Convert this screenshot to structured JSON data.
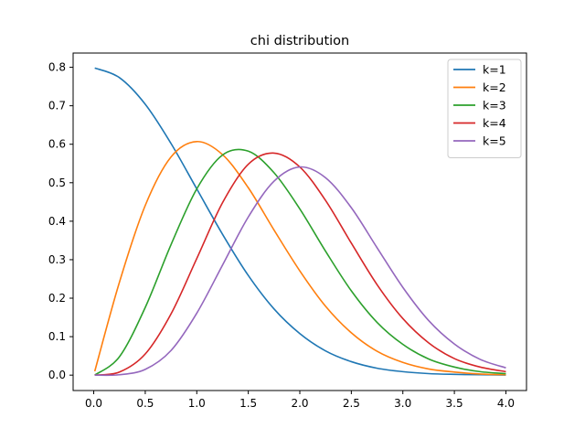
{
  "chart_data": {
    "type": "line",
    "title": "chi distribution",
    "xlabel": "",
    "ylabel": "",
    "xlim": [
      -0.2,
      4.2
    ],
    "ylim": [
      -0.04,
      0.837
    ],
    "x_ticks": [
      0.0,
      0.5,
      1.0,
      1.5,
      2.0,
      2.5,
      3.0,
      3.5,
      4.0
    ],
    "x_tick_labels": [
      "0.0",
      "0.5",
      "1.0",
      "1.5",
      "2.0",
      "2.5",
      "3.0",
      "3.5",
      "4.0"
    ],
    "y_ticks": [
      0.0,
      0.1,
      0.2,
      0.3,
      0.4,
      0.5,
      0.6,
      0.7,
      0.8
    ],
    "y_tick_labels": [
      "0.0",
      "0.1",
      "0.2",
      "0.3",
      "0.4",
      "0.5",
      "0.6",
      "0.7",
      "0.8"
    ],
    "grid": false,
    "legend_position": "top-right",
    "x": [
      0.01,
      0.25,
      0.5,
      0.75,
      1.0,
      1.25,
      1.5,
      1.75,
      2.0,
      2.25,
      2.5,
      2.75,
      3.0,
      3.25,
      3.5,
      3.75,
      4.0
    ],
    "series": [
      {
        "name": "k=1",
        "color": "#1f77b4",
        "values": [
          0.798,
          0.773,
          0.704,
          0.602,
          0.484,
          0.366,
          0.259,
          0.172,
          0.108,
          0.063,
          0.035,
          0.018,
          0.009,
          0.004,
          0.002,
          0.001,
          0.0003
        ]
      },
      {
        "name": "k=2",
        "color": "#ff7f0e",
        "values": [
          0.01,
          0.242,
          0.441,
          0.567,
          0.607,
          0.573,
          0.487,
          0.377,
          0.271,
          0.179,
          0.11,
          0.062,
          0.033,
          0.016,
          0.008,
          0.003,
          0.001
        ]
      },
      {
        "name": "k=3",
        "color": "#2ca02c",
        "values": [
          0.0001,
          0.048,
          0.176,
          0.339,
          0.484,
          0.572,
          0.582,
          0.526,
          0.432,
          0.322,
          0.219,
          0.137,
          0.08,
          0.042,
          0.021,
          0.009,
          0.004
        ]
      },
      {
        "name": "k=4",
        "color": "#d62728",
        "values": [
          0.0,
          0.008,
          0.055,
          0.159,
          0.303,
          0.448,
          0.548,
          0.577,
          0.541,
          0.454,
          0.343,
          0.235,
          0.147,
          0.084,
          0.043,
          0.021,
          0.009
        ]
      },
      {
        "name": "k=5",
        "color": "#9467bd",
        "values": [
          0.0,
          0.001,
          0.015,
          0.064,
          0.161,
          0.286,
          0.411,
          0.504,
          0.541,
          0.513,
          0.435,
          0.331,
          0.228,
          0.142,
          0.081,
          0.041,
          0.019
        ]
      }
    ]
  }
}
